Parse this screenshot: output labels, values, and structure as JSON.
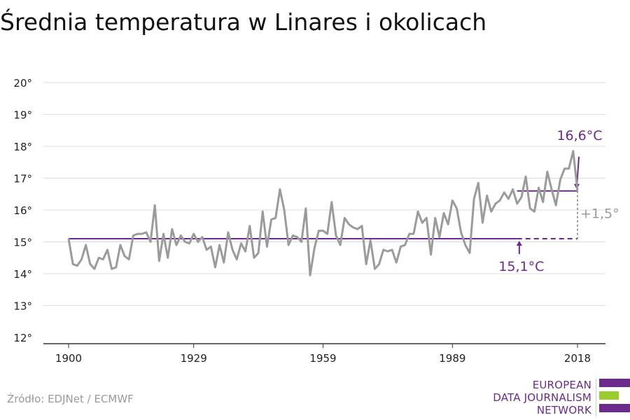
{
  "page": {
    "title": "Średnia temperatura w Linares i okolicach",
    "source": "Źródło: EDJNet / ECMWF",
    "logo": {
      "line1": "EUROPEAN",
      "line2": "DATA JOURNALISM",
      "line3": "NETWORK",
      "colors": [
        "#6b2a8c",
        "#9bcc2e",
        "#6b2a8c"
      ]
    }
  },
  "chart_data": {
    "type": "line",
    "title": "Średnia temperatura w Linares i okolicach",
    "xlabel": "",
    "ylabel": "",
    "xlim": [
      1900,
      2018
    ],
    "ylim": [
      12,
      20
    ],
    "x_ticks": [
      1900,
      1929,
      1959,
      1989,
      2018
    ],
    "y_ticks": [
      12,
      13,
      14,
      15,
      16,
      17,
      18,
      19,
      20
    ],
    "y_tick_format": "°",
    "grid": true,
    "colors": {
      "series": "#9b9b9b",
      "reference": "#6b2a8c",
      "diff": "#9b9b9b"
    },
    "series": [
      {
        "x_start": 1900,
        "values": [
          15.1,
          14.3,
          14.25,
          14.45,
          14.9,
          14.3,
          14.15,
          14.5,
          14.45,
          14.75,
          14.15,
          14.2,
          14.9,
          14.55,
          14.45,
          15.2,
          15.25,
          15.25,
          15.3,
          15.0,
          16.15,
          14.4,
          15.25,
          14.5,
          15.4,
          14.9,
          15.2,
          15.0,
          14.95,
          15.25,
          15.0,
          15.15,
          14.75,
          14.85,
          14.2,
          14.9,
          14.35,
          15.3,
          14.75,
          14.45,
          14.95,
          14.7,
          15.5,
          14.5,
          14.65,
          15.95,
          14.85,
          15.7,
          15.75,
          16.65,
          16.0,
          14.9,
          15.2,
          15.15,
          15.0,
          16.05,
          13.95,
          14.8,
          15.35,
          15.35,
          15.25,
          16.25,
          15.2,
          14.9,
          15.75,
          15.55,
          15.45,
          15.4,
          15.5,
          14.3,
          15.05,
          14.15,
          14.3,
          14.75,
          14.7,
          14.75,
          14.35,
          14.85,
          14.9,
          15.25,
          15.25,
          15.95,
          15.6,
          15.75,
          14.6,
          15.75,
          15.15,
          15.9,
          15.55,
          16.3,
          16.05,
          15.3,
          14.9,
          14.65,
          16.35,
          16.85,
          15.6,
          16.45,
          15.95,
          16.2,
          16.3,
          16.55,
          16.35,
          16.65,
          16.2,
          16.4,
          17.05,
          16.05,
          15.95,
          16.7,
          16.25,
          17.2,
          16.65,
          16.15,
          16.95,
          17.3,
          17.3,
          17.85,
          16.6
        ]
      }
    ],
    "reference_lines": [
      {
        "label": "15,1°C",
        "value": 15.1,
        "x_from": 1900,
        "x_to": 2018,
        "solid_to": 2004
      },
      {
        "label": "16,6°C",
        "value": 16.6,
        "x_from": 2004,
        "x_to": 2018
      }
    ],
    "difference_label": "+1,5°"
  }
}
